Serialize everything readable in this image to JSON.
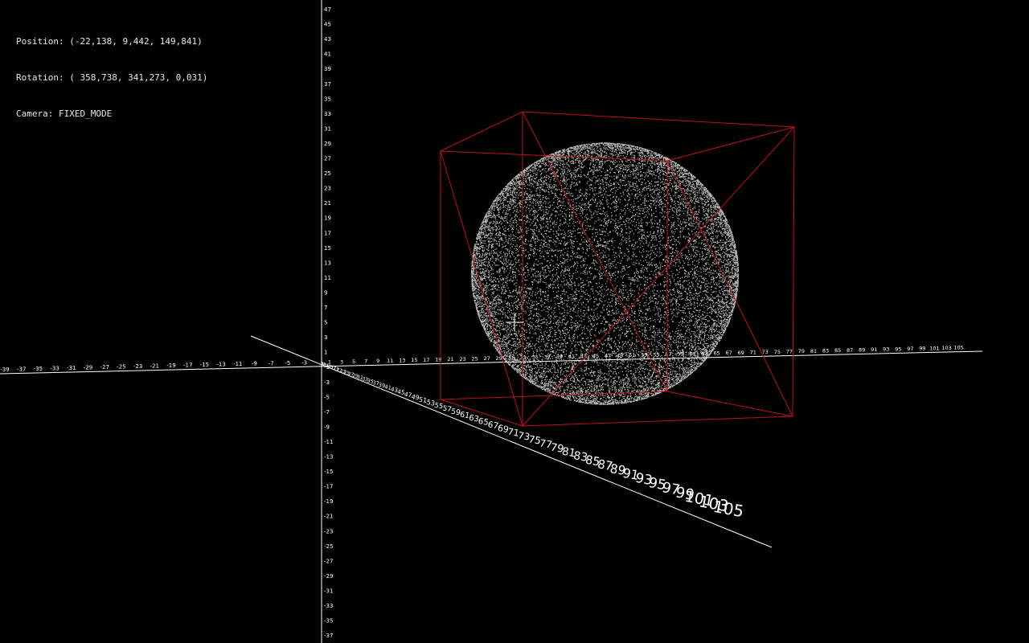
{
  "hud": {
    "position": "Position: (-22,138, 9,442, 149,841)",
    "rotation": "Rotation: ( 358,738, 341,273, 0,031)",
    "camera": "Camera: FIXED_MODE"
  },
  "scene": {
    "background": "#000000",
    "axis_color": "#ffffff",
    "bbox_color": "#c0101a",
    "point_color": "#d8d8d8",
    "point_cloud_shape": "sphere",
    "crosshair": "crosshair-icon",
    "y_axis_ticks": [
      "47",
      "45",
      "43",
      "41",
      "39",
      "37",
      "35",
      "33",
      "31",
      "29",
      "27",
      "25",
      "23",
      "21",
      "19",
      "17",
      "15",
      "13",
      "11",
      "9",
      "7",
      "5",
      "3",
      "1",
      "-1",
      "-3",
      "-5",
      "-7",
      "-9",
      "-11",
      "-13",
      "-15",
      "-17",
      "-19",
      "-21",
      "-23",
      "-25",
      "-27",
      "-29",
      "-31",
      "-33",
      "-35",
      "-37"
    ],
    "x_axis_ticks_negative": [
      "-39",
      "-37",
      "-35",
      "-33",
      "-31",
      "-29",
      "-27",
      "-25",
      "-23",
      "-21",
      "-19",
      "-17",
      "-15",
      "-13",
      "-11",
      "-9",
      "-7",
      "-5",
      "-3"
    ],
    "x_axis_ticks_positive": [
      "1",
      "3",
      "5",
      "7",
      "9",
      "11",
      "13",
      "15",
      "17",
      "19",
      "21",
      "23",
      "25",
      "27",
      "29",
      "31",
      "33",
      "35",
      "37",
      "39",
      "41",
      "43",
      "45",
      "47",
      "49",
      "51",
      "53",
      "55",
      "57",
      "59",
      "61",
      "63",
      "65",
      "67",
      "69",
      "71",
      "73",
      "75",
      "77",
      "79",
      "81",
      "83",
      "85",
      "87",
      "89",
      "91",
      "93",
      "95",
      "97",
      "99",
      "101",
      "103",
      "105"
    ],
    "z_axis_ticks": [
      "1",
      "3",
      "5",
      "7",
      "9",
      "11",
      "13",
      "15",
      "17",
      "19",
      "21",
      "23",
      "25",
      "27",
      "29",
      "31",
      "33",
      "35",
      "37",
      "39",
      "41",
      "43",
      "45",
      "47",
      "49",
      "51",
      "53",
      "55",
      "57",
      "59",
      "61",
      "63",
      "65",
      "67",
      "69",
      "71",
      "73",
      "75",
      "77",
      "79",
      "81",
      "83",
      "85",
      "87",
      "89",
      "91",
      "93",
      "95",
      "97",
      "99",
      "101",
      "103",
      "105"
    ]
  }
}
